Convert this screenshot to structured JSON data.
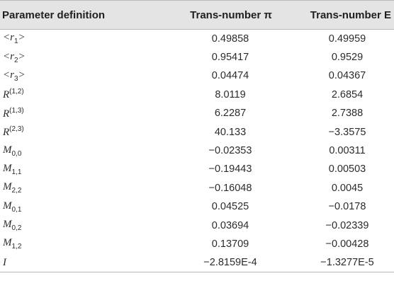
{
  "table": {
    "headers": {
      "param": "Parameter definition",
      "pi": "Trans-number π",
      "e": "Trans-number E"
    },
    "rows": [
      {
        "sym": "r",
        "sub": "1",
        "sup": "",
        "bracket": true,
        "pi": "0.49858",
        "e": "0.49959"
      },
      {
        "sym": "r",
        "sub": "2",
        "sup": "",
        "bracket": true,
        "pi": "0.95417",
        "e": "0.9529"
      },
      {
        "sym": "r",
        "sub": "3",
        "sup": "",
        "bracket": true,
        "pi": "0.04474",
        "e": "0.04367"
      },
      {
        "sym": "R",
        "sub": "",
        "sup": "(1,2)",
        "bracket": false,
        "pi": "8.0119",
        "e": "2.6854"
      },
      {
        "sym": "R",
        "sub": "",
        "sup": "(1,3)",
        "bracket": false,
        "pi": "6.2287",
        "e": "2.7388"
      },
      {
        "sym": "R",
        "sub": "",
        "sup": "(2,3)",
        "bracket": false,
        "pi": "40.133",
        "e": "−3.3575"
      },
      {
        "sym": "M",
        "sub": "0,0",
        "sup": "",
        "bracket": false,
        "pi": "−0.02353",
        "e": "0.00311"
      },
      {
        "sym": "M",
        "sub": "1,1",
        "sup": "",
        "bracket": false,
        "pi": "−0.19443",
        "e": "0.00503"
      },
      {
        "sym": "M",
        "sub": "2,2",
        "sup": "",
        "bracket": false,
        "pi": "−0.16048",
        "e": "0.0045"
      },
      {
        "sym": "M",
        "sub": "0,1",
        "sup": "",
        "bracket": false,
        "pi": "0.04525",
        "e": "−0.0178"
      },
      {
        "sym": "M",
        "sub": "0,2",
        "sup": "",
        "bracket": false,
        "pi": "0.03694",
        "e": "−0.02339"
      },
      {
        "sym": "M",
        "sub": "1,2",
        "sup": "",
        "bracket": false,
        "pi": "0.13709",
        "e": "−0.00428"
      },
      {
        "sym": "I",
        "sub": "",
        "sup": "",
        "bracket": false,
        "pi": "−2.8159E-4",
        "e": "−1.3277E-5"
      }
    ]
  }
}
